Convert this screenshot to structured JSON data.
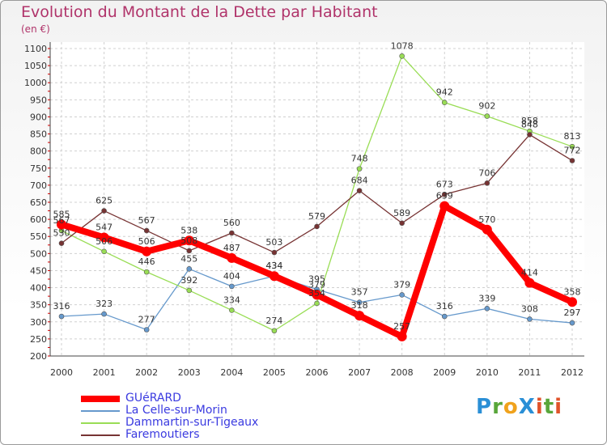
{
  "title": "Evolution du Montant de la Dette par Habitant",
  "unit_label": "(en €)",
  "logo": "ProXiti",
  "chart_data": {
    "type": "line",
    "title": "Evolution du Montant de la Dette par Habitant",
    "ylabel": "(en €)",
    "xlabel": "",
    "categories": [
      "2000",
      "2001",
      "2002",
      "2003",
      "2004",
      "2005",
      "2006",
      "2007",
      "2008",
      "2009",
      "2010",
      "2011",
      "2012"
    ],
    "ylim": [
      200,
      1100
    ],
    "yticks": [
      200,
      250,
      300,
      350,
      400,
      450,
      500,
      550,
      600,
      650,
      700,
      750,
      800,
      850,
      900,
      950,
      1000,
      1050,
      1100
    ],
    "grid": "dashed",
    "legend_position": "bottom-left",
    "series": [
      {
        "name": "GUéRARD",
        "color": "#ff0000",
        "values": [
          585,
          547,
          506,
          538,
          487,
          434,
          379,
          318,
          257,
          639,
          570,
          414,
          358
        ]
      },
      {
        "name": "La Celle-sur-Morin",
        "color": "#6699cc",
        "values": [
          316,
          323,
          277,
          455,
          404,
          434,
          395,
          357,
          379,
          316,
          339,
          308,
          297
        ]
      },
      {
        "name": "Dammartin-sur-Tigeaux",
        "color": "#99dd55",
        "values": [
          567,
          506,
          446,
          392,
          334,
          274,
          354,
          748,
          1078,
          942,
          902,
          858,
          813
        ]
      },
      {
        "name": "Faremoutiers",
        "color": "#773333",
        "values": [
          530,
          625,
          567,
          508,
          560,
          503,
          579,
          684,
          589,
          673,
          706,
          848,
          772
        ]
      }
    ],
    "data_labels": [
      [
        585,
        547,
        506,
        538,
        487,
        434,
        379,
        318,
        257,
        639,
        570,
        414,
        358
      ],
      [
        316,
        323,
        277,
        455,
        404,
        434,
        395,
        357,
        379,
        316,
        339,
        308,
        297
      ],
      [
        567,
        506,
        446,
        392,
        334,
        274,
        354,
        748,
        1078,
        942,
        902,
        858,
        813
      ],
      [
        530,
        625,
        567,
        508,
        560,
        503,
        579,
        684,
        589,
        673,
        706,
        848,
        772
      ]
    ]
  }
}
